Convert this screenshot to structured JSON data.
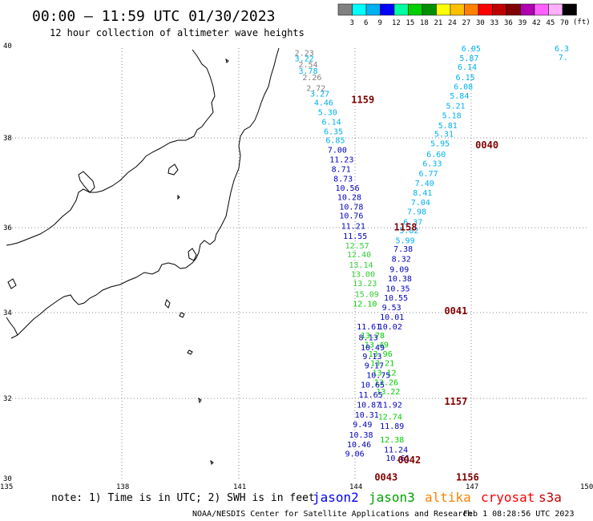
{
  "header": {
    "title": "00:00 – 11:59 UTC 01/30/2023",
    "subtitle": "12 hour collection of altimeter wave heights"
  },
  "scale": {
    "unit": "(ft)",
    "ticks": [
      "3",
      "6",
      "9",
      "12",
      "15",
      "18",
      "21",
      "24",
      "27",
      "30",
      "33",
      "36",
      "39",
      "42",
      "45",
      "70"
    ],
    "colors": [
      "#808080",
      "#00ffff",
      "#00b0f0",
      "#0000ff",
      "#00ffa0",
      "#00d000",
      "#009000",
      "#ffff00",
      "#ffc000",
      "#ff8000",
      "#ff0000",
      "#c00000",
      "#800000",
      "#b000b0",
      "#ff60ff",
      "#ffb0ff",
      "#000000"
    ]
  },
  "axes": {
    "lat_labels": [
      "40",
      "38",
      "36",
      "34",
      "32",
      "30"
    ],
    "lon_labels": [
      "135",
      "138",
      "141",
      "144",
      "147",
      "150"
    ]
  },
  "times": [
    {
      "label": "1159",
      "lon": 144.2,
      "lat": 38.8
    },
    {
      "label": "0040",
      "lon": 147.4,
      "lat": 37.75
    },
    {
      "label": "1158",
      "lon": 145.3,
      "lat": 35.85
    },
    {
      "label": "0041",
      "lon": 146.6,
      "lat": 33.9
    },
    {
      "label": "1157",
      "lon": 146.6,
      "lat": 31.8
    },
    {
      "label": "0042",
      "lon": 145.4,
      "lat": 30.45
    },
    {
      "label": "0043",
      "lon": 144.8,
      "lat": 30.05
    },
    {
      "label": "1156",
      "lon": 146.9,
      "lat": 30.05
    }
  ],
  "tracks": [
    {
      "color": "#808080",
      "points": [
        [
          "2.23",
          142.7,
          39.9
        ],
        [
          "2.54",
          142.8,
          39.63
        ],
        [
          "2.26",
          142.9,
          39.33
        ],
        [
          "2.72",
          143.0,
          39.08
        ]
      ]
    },
    {
      "color": "#00b0f0",
      "points": [
        [
          "3.22",
          142.7,
          39.77
        ],
        [
          "3.78",
          142.8,
          39.48
        ],
        [
          "3.27",
          143.1,
          38.95
        ],
        [
          "4.46",
          143.2,
          38.75
        ],
        [
          "5.30",
          143.3,
          38.52
        ],
        [
          "6.14",
          143.4,
          38.3
        ],
        [
          "6.35",
          143.45,
          38.08
        ],
        [
          "6.85",
          143.5,
          37.87
        ]
      ]
    },
    {
      "color": "#00b0f0",
      "points": [
        [
          "6.05",
          147.0,
          40.0
        ],
        [
          "5.87",
          146.95,
          39.78
        ],
        [
          "6.14",
          146.9,
          39.57
        ],
        [
          "6.15",
          146.85,
          39.33
        ],
        [
          "6.08",
          146.8,
          39.12
        ],
        [
          "5.84",
          146.7,
          38.9
        ],
        [
          "5.21",
          146.6,
          38.67
        ],
        [
          "5.18",
          146.5,
          38.45
        ],
        [
          "5.81",
          146.4,
          38.22
        ],
        [
          "5.31",
          146.3,
          38.02
        ],
        [
          "5.95",
          146.2,
          37.8
        ],
        [
          "6.60",
          146.1,
          37.55
        ],
        [
          "6.33",
          146.0,
          37.33
        ],
        [
          "6.77",
          145.9,
          37.1
        ],
        [
          "7.40",
          145.8,
          36.88
        ],
        [
          "8.41",
          145.75,
          36.65
        ],
        [
          "7.04",
          145.7,
          36.43
        ],
        [
          "7.98",
          145.6,
          36.22
        ],
        [
          "6.37",
          145.5,
          35.98
        ],
        [
          "5.82",
          145.4,
          35.78
        ],
        [
          "5.99",
          145.3,
          35.55
        ]
      ]
    },
    {
      "color": "#0000c0",
      "points": [
        [
          "7.00",
          143.55,
          37.65
        ],
        [
          "11.23",
          143.6,
          37.43
        ],
        [
          "8.71",
          143.65,
          37.2
        ],
        [
          "8.73",
          143.7,
          36.98
        ],
        [
          "10.56",
          143.75,
          36.77
        ],
        [
          "10.28",
          143.8,
          36.55
        ],
        [
          "10.78",
          143.85,
          36.33
        ],
        [
          "10.76",
          143.85,
          36.12
        ],
        [
          "11.21",
          143.9,
          35.88
        ],
        [
          "11.55",
          143.95,
          35.65
        ]
      ]
    },
    {
      "color": "#0000c0",
      "points": [
        [
          "7.38",
          145.25,
          35.35
        ],
        [
          "8.32",
          145.2,
          35.12
        ],
        [
          "9.09",
          145.15,
          34.88
        ],
        [
          "10.38",
          145.1,
          34.67
        ],
        [
          "10.35",
          145.05,
          34.43
        ]
      ]
    },
    {
      "color": "#33cc33",
      "points": [
        [
          "12.57",
          144.0,
          35.43
        ],
        [
          "12.40",
          144.05,
          35.22
        ],
        [
          "13.14",
          144.1,
          34.98
        ],
        [
          "13.00",
          144.15,
          34.77
        ],
        [
          "13.23",
          144.2,
          34.55
        ],
        [
          "15.09",
          144.25,
          34.3
        ]
      ]
    },
    {
      "color": "#0000c0",
      "points": [
        [
          "10.55",
          145.0,
          34.22
        ],
        [
          "9.53",
          144.95,
          34.0
        ],
        [
          "10.01",
          144.9,
          33.77
        ],
        [
          "10.02",
          144.85,
          33.55
        ]
      ]
    },
    {
      "color": "#00d000",
      "points": [
        [
          "12.10",
          144.2,
          34.08
        ],
        [
          "13.78",
          144.4,
          33.35
        ],
        [
          "13.49",
          144.5,
          33.13
        ],
        [
          "13.96",
          144.6,
          32.92
        ],
        [
          "13.21",
          144.65,
          32.7
        ],
        [
          "13.12",
          144.7,
          32.48
        ],
        [
          "13.26",
          144.75,
          32.26
        ],
        [
          "13.22",
          144.8,
          32.04
        ],
        [
          "12.74",
          144.85,
          31.46
        ],
        [
          "12.38",
          144.9,
          30.93
        ]
      ]
    },
    {
      "color": "#0000c0",
      "points": [
        [
          "11.61",
          144.3,
          33.55
        ],
        [
          "8.13",
          144.35,
          33.3
        ],
        [
          "10.49",
          144.4,
          33.07
        ],
        [
          "9.13",
          144.45,
          32.86
        ],
        [
          "9.17",
          144.5,
          32.65
        ],
        [
          "10.75",
          144.55,
          32.43
        ],
        [
          "10.65",
          144.4,
          32.2
        ],
        [
          "11.65",
          144.35,
          31.97
        ],
        [
          "10.87",
          144.3,
          31.74
        ],
        [
          "10.31",
          144.25,
          31.51
        ],
        [
          "9.49",
          144.2,
          31.28
        ],
        [
          "10.38",
          144.1,
          31.04
        ],
        [
          "10.46",
          144.05,
          30.82
        ],
        [
          "9.06",
          144.0,
          30.6
        ]
      ]
    },
    {
      "color": "#0000c0",
      "points": [
        [
          "11.92",
          144.85,
          31.74
        ],
        [
          "11.89",
          144.9,
          31.25
        ],
        [
          "11.24",
          145.0,
          30.7
        ],
        [
          "10.61",
          145.05,
          30.5
        ]
      ]
    },
    {
      "color": "#00b0f0",
      "points": [
        [
          "6.3",
          149.4,
          40.0
        ],
        [
          "7.",
          149.5,
          39.8
        ]
      ]
    }
  ],
  "legend": {
    "note": "note: 1) Time is in UTC; 2) SWH is in feet",
    "missions": [
      {
        "name": "jason2",
        "color": "#0000ff"
      },
      {
        "name": "jason3",
        "color": "#00a000"
      },
      {
        "name": "altika",
        "color": "#ff8000"
      },
      {
        "name": "cryosat",
        "color": "#ff0000"
      },
      {
        "name": "s3a",
        "color": "#c00000"
      }
    ],
    "credit": "NOAA/NESDIS Center for Satellite Applications and Research",
    "stamp": "Feb  1 08:28:56 UTC 2023"
  }
}
